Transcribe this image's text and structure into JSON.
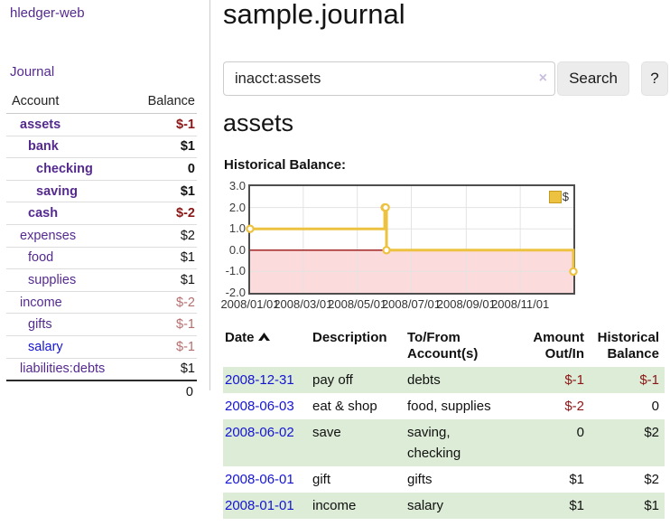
{
  "app": {
    "brand": "hledger-web"
  },
  "colors": {
    "link_purple": "#552a8f",
    "link_blue": "#1414d6",
    "negative_strong": "#8b1616",
    "negative_soft": "#b56e6e",
    "row_highlight_green": "#ddecd7",
    "chart_series_yellow": "#edc240",
    "chart_negative_region": "#fbdbdb",
    "chart_zero_line": "#991111"
  },
  "sidebar": {
    "journal_link": "Journal",
    "accounts_table": {
      "headers": [
        "Account",
        "Balance"
      ],
      "rows": [
        {
          "account": "assets",
          "depth": 1,
          "bold": true,
          "balance": "$-1",
          "balance_style": "neg-strong",
          "link_color": "purple"
        },
        {
          "account": "bank",
          "depth": 2,
          "bold": true,
          "balance": "$1",
          "balance_style": "normal",
          "link_color": "purple"
        },
        {
          "account": "checking",
          "depth": 3,
          "bold": true,
          "balance": "0",
          "balance_style": "normal",
          "link_color": "purple"
        },
        {
          "account": "saving",
          "depth": 3,
          "bold": true,
          "balance": "$1",
          "balance_style": "normal",
          "link_color": "purple"
        },
        {
          "account": "cash",
          "depth": 2,
          "bold": true,
          "balance": "$-2",
          "balance_style": "neg-strong",
          "link_color": "purple"
        },
        {
          "account": "expenses",
          "depth": 1,
          "bold": false,
          "balance": "$2",
          "balance_style": "normal",
          "link_color": "purple"
        },
        {
          "account": "food",
          "depth": 2,
          "bold": false,
          "balance": "$1",
          "balance_style": "normal",
          "link_color": "purple"
        },
        {
          "account": "supplies",
          "depth": 2,
          "bold": false,
          "balance": "$1",
          "balance_style": "normal",
          "link_color": "purple"
        },
        {
          "account": "income",
          "depth": 1,
          "bold": false,
          "balance": "$-2",
          "balance_style": "neg-soft",
          "link_color": "purple"
        },
        {
          "account": "gifts",
          "depth": 2,
          "bold": false,
          "balance": "$-1",
          "balance_style": "neg-soft",
          "link_color": "purple"
        },
        {
          "account": "salary",
          "depth": 2,
          "bold": false,
          "balance": "$-1",
          "balance_style": "neg-soft",
          "link_color": "blue"
        },
        {
          "account": "liabilities:debts",
          "depth": 1,
          "bold": false,
          "balance": "$1",
          "balance_style": "normal",
          "link_color": "purple"
        }
      ],
      "total": "0"
    }
  },
  "main": {
    "title": "sample.journal",
    "search": {
      "value": "inacct:assets",
      "clear_icon": "×",
      "button_label": "Search",
      "help_label": "?"
    },
    "account_heading": "assets",
    "chart_label": "Historical Balance:"
  },
  "chart_data": {
    "type": "line",
    "title": "Historical Balance",
    "step": true,
    "grid": true,
    "legend_position": "top-right",
    "legend": [
      {
        "label": "$",
        "color": "#edc240"
      }
    ],
    "ylim": [
      -2.0,
      3.0
    ],
    "yticks": [
      3.0,
      2.0,
      1.0,
      0.0,
      -1.0,
      -2.0
    ],
    "xticks": [
      "2008/01/01",
      "2008/03/01",
      "2008/05/01",
      "2008/07/01",
      "2008/09/01",
      "2008/11/01"
    ],
    "xrange": [
      "2008/01/01",
      "2008/12/31"
    ],
    "series": [
      {
        "name": "$",
        "color": "#edc240",
        "points": [
          {
            "date": "2008-01-01",
            "value": 1
          },
          {
            "date": "2008-06-01",
            "value": 2
          },
          {
            "date": "2008-06-02",
            "value": 2
          },
          {
            "date": "2008-06-03",
            "value": 0
          },
          {
            "date": "2008-12-31",
            "value": -1
          }
        ]
      }
    ],
    "negative_region_shaded": true
  },
  "register": {
    "headers": [
      {
        "line1": "Date",
        "line2": "",
        "align": "left",
        "sorted_asc": true
      },
      {
        "line1": "Description",
        "line2": "",
        "align": "left"
      },
      {
        "line1": "To/From",
        "line2": "Account(s)",
        "align": "left"
      },
      {
        "line1": "Amount",
        "line2": "Out/In",
        "align": "right"
      },
      {
        "line1": "Historical",
        "line2": "Balance",
        "align": "right"
      }
    ],
    "rows": [
      {
        "date": "2008-12-31",
        "description": "pay off",
        "accounts": "debts",
        "amount": "$-1",
        "amount_negative": true,
        "balance": "$-1",
        "balance_negative": true
      },
      {
        "date": "2008-06-03",
        "description": "eat & shop",
        "accounts": "food, supplies",
        "amount": "$-2",
        "amount_negative": true,
        "balance": "0",
        "balance_negative": false
      },
      {
        "date": "2008-06-02",
        "description": "save",
        "accounts": "saving, checking",
        "amount": "0",
        "amount_negative": false,
        "balance": "$2",
        "balance_negative": false
      },
      {
        "date": "2008-06-01",
        "description": "gift",
        "accounts": "gifts",
        "amount": "$1",
        "amount_negative": false,
        "balance": "$2",
        "balance_negative": false
      },
      {
        "date": "2008-01-01",
        "description": "income",
        "accounts": "salary",
        "amount": "$1",
        "amount_negative": false,
        "balance": "$1",
        "balance_negative": false
      }
    ]
  }
}
